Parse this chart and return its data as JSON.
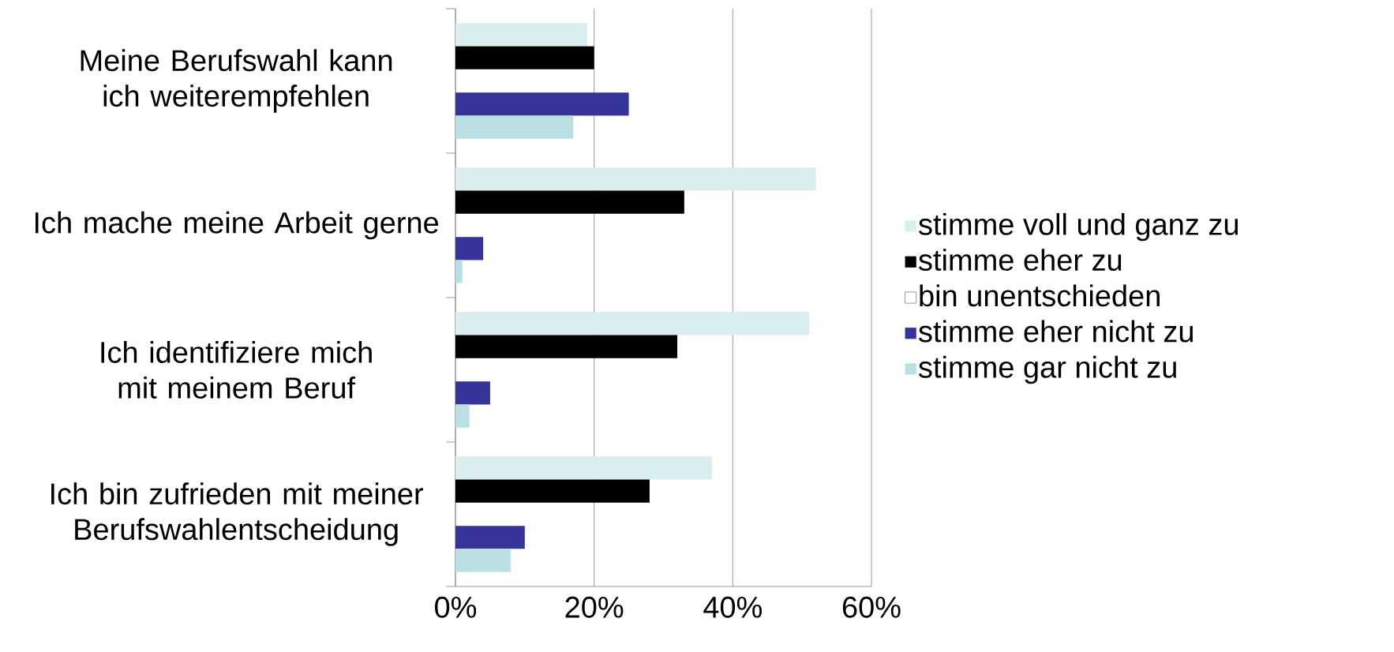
{
  "chart_data": {
    "type": "bar",
    "orientation": "horizontal",
    "categories": [
      "Meine Berufswahl kann ich weiterempfehlen",
      "Ich mache meine Arbeit gerne",
      "Ich identifiziere mich mit meinem Beruf",
      "Ich bin zufrieden mit meiner Berufswahlentscheidung"
    ],
    "series": [
      {
        "name": "stimme voll und ganz zu",
        "color": "#daedef",
        "values": [
          19,
          52,
          51,
          37
        ]
      },
      {
        "name": "stimme eher zu",
        "color": "#000000",
        "values": [
          20,
          33,
          32,
          28
        ]
      },
      {
        "name": "bin unentschieden",
        "values": [
          null,
          null,
          null,
          null
        ]
      },
      {
        "name": "stimme eher nicht zu",
        "color": "#363399",
        "values": [
          25,
          4,
          5,
          10
        ]
      },
      {
        "name": "stimme gar nicht zu",
        "color": "#bbe0e3",
        "values": [
          17,
          1,
          2,
          8
        ]
      }
    ],
    "xlim": [
      0,
      60
    ],
    "xticks": [
      {
        "value": 0,
        "label": "0%"
      },
      {
        "value": 20,
        "label": "20%"
      },
      {
        "value": 40,
        "label": "40%"
      },
      {
        "value": 60,
        "label": "60%"
      }
    ],
    "grid": "x",
    "legend": "right"
  }
}
